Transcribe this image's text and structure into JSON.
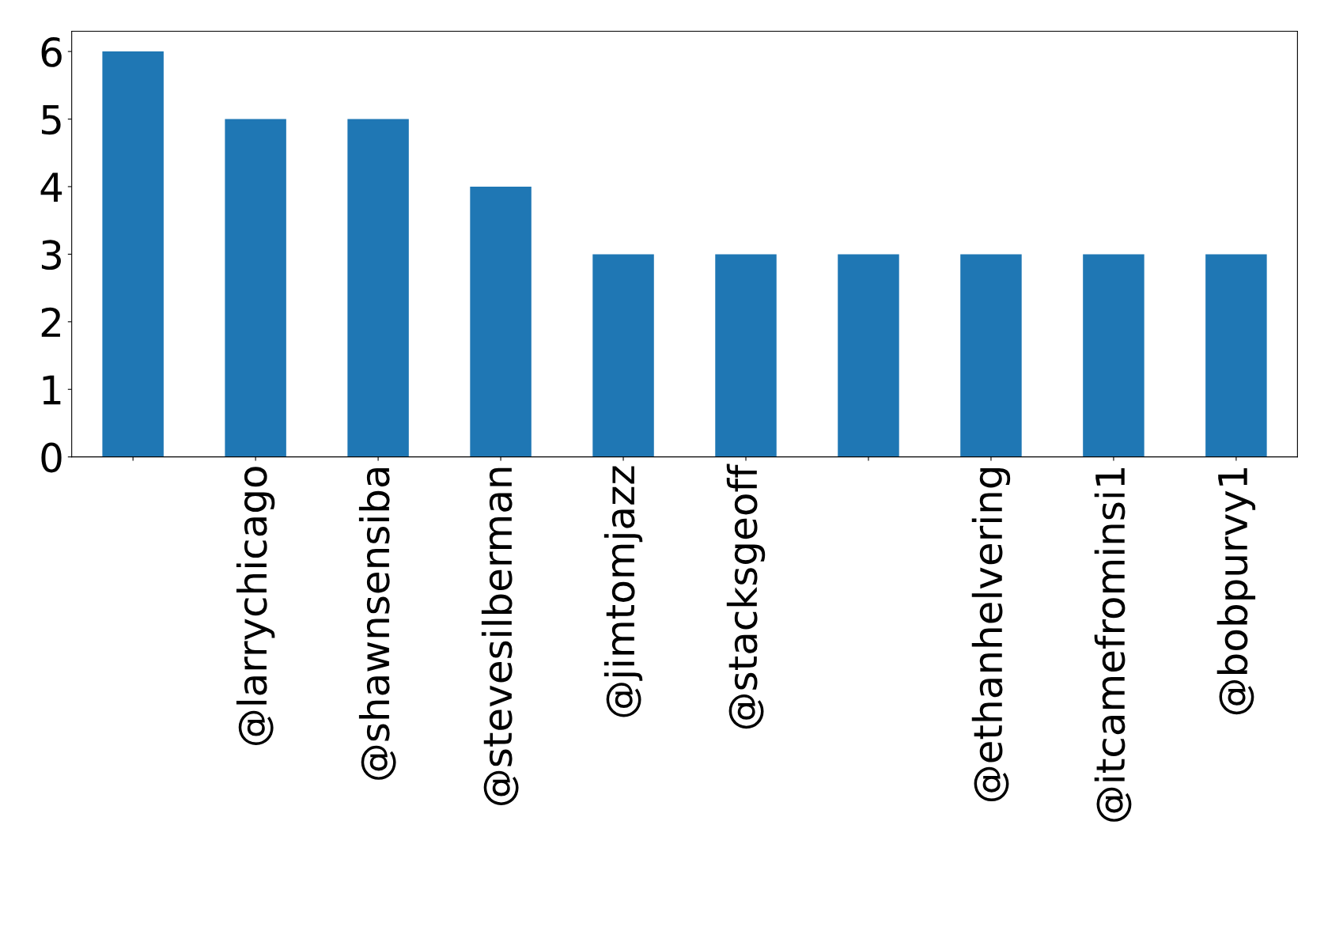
{
  "chart_data": {
    "type": "bar",
    "categories": [
      null,
      "@larrychicago",
      "@shawnsensiba",
      "@stevesilberman",
      "@jimtomjazz",
      "@stacksgeoff",
      null,
      "@ethanhelvering",
      "@itcamefrominsi1",
      "@bobpurvy1"
    ],
    "values": [
      6,
      5,
      5,
      4,
      3,
      3,
      3,
      3,
      3,
      3
    ],
    "color": "#1f77b4",
    "ylim": [
      0,
      6.3
    ],
    "yticks": [
      0,
      1,
      2,
      3,
      4,
      5,
      6
    ],
    "grid": false,
    "legend": false
  }
}
